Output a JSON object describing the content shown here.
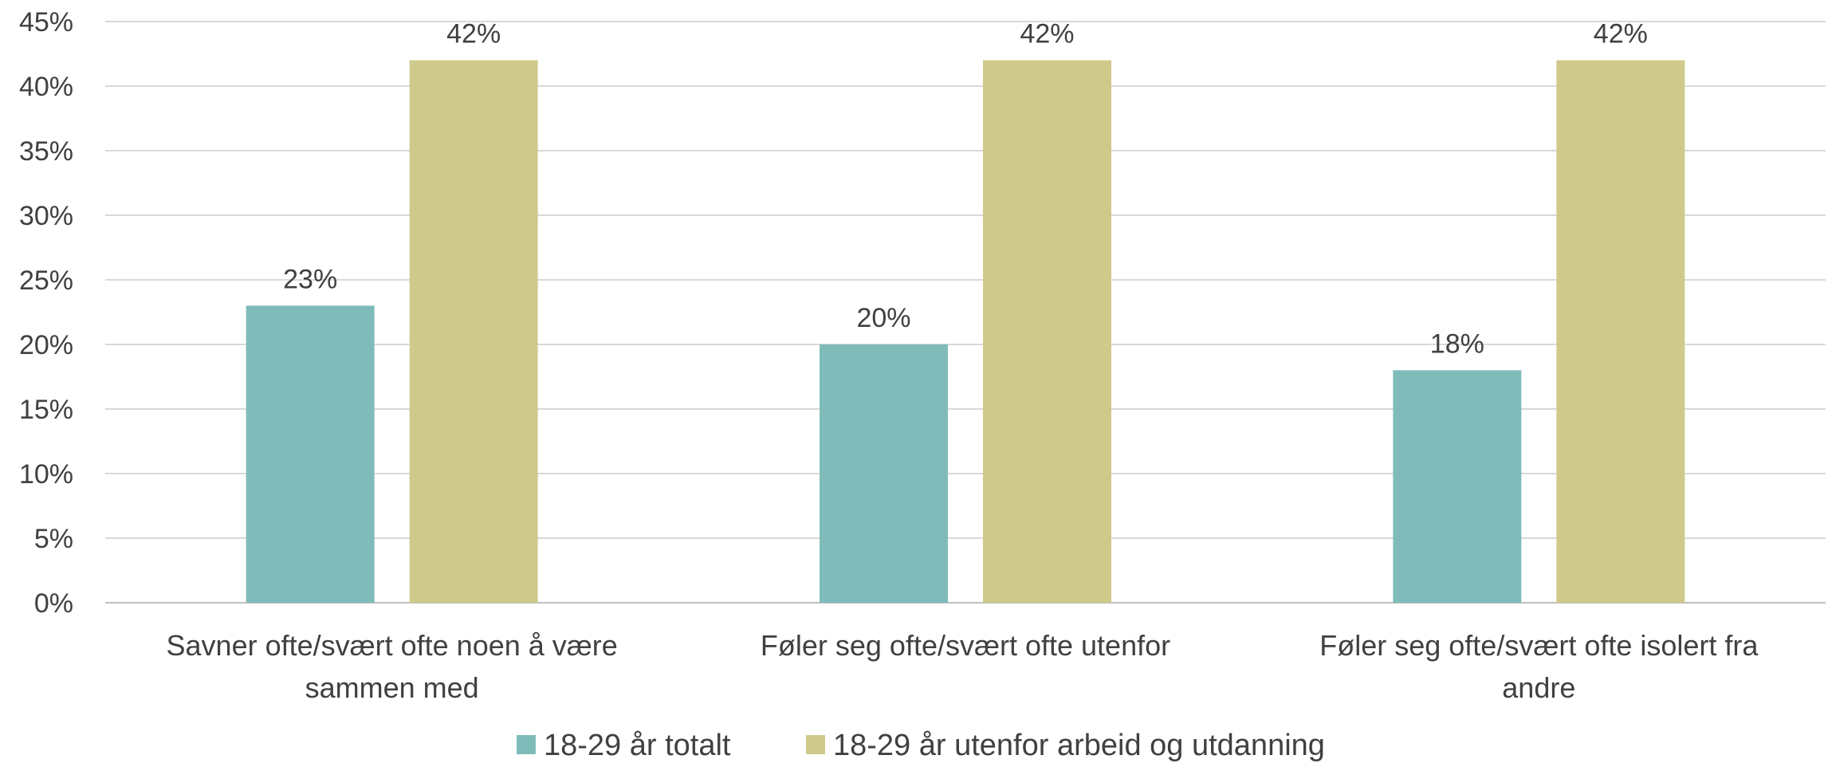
{
  "chart_data": {
    "type": "bar",
    "categories": [
      [
        "Savner ofte/svært ofte noen å være",
        "sammen med"
      ],
      [
        "Føler seg ofte/svært ofte utenfor"
      ],
      [
        "Føler seg ofte/svært ofte isolert fra",
        "andre"
      ]
    ],
    "series": [
      {
        "name": "18-29 år totalt",
        "values": [
          23,
          20,
          18
        ],
        "labels": [
          "23%",
          "20%",
          "18%"
        ],
        "color": "#7fbcb9"
      },
      {
        "name": "18-29 år utenfor arbeid og utdanning",
        "values": [
          42,
          42,
          42
        ],
        "labels": [
          "42%",
          "42%",
          "42%"
        ],
        "color": "#cfca8c"
      }
    ],
    "yticks": [
      "0%",
      "5%",
      "10%",
      "15%",
      "20%",
      "25%",
      "30%",
      "35%",
      "40%",
      "45%"
    ],
    "ylim": [
      0,
      45
    ],
    "grid": true,
    "legend": "bottom",
    "title": "",
    "xlabel": "",
    "ylabel": ""
  }
}
